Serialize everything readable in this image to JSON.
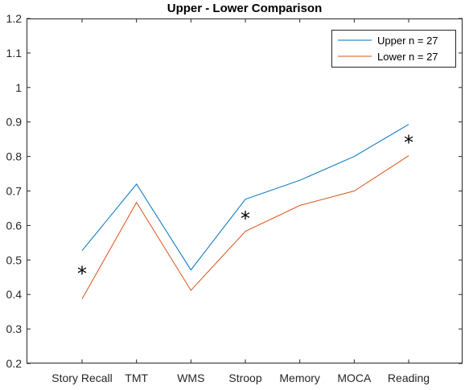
{
  "chart_data": {
    "type": "line",
    "title": "Upper - Lower Comparison",
    "categories": [
      "Story Recall",
      "TMT",
      "WMS",
      "Stroop",
      "Memory",
      "MOCA",
      "Reading"
    ],
    "ylim": [
      0.2,
      1.2
    ],
    "yticks": [
      "0.2",
      "0.3",
      "0.4",
      "0.5",
      "0.6",
      "0.7",
      "0.8",
      "0.9",
      "1",
      "1.1",
      "1.2"
    ],
    "yticks_values": [
      0.2,
      0.3,
      0.4,
      0.5,
      0.6,
      0.7,
      0.8,
      0.9,
      1.0,
      1.1,
      1.2
    ],
    "grid": false,
    "legend_position": "top-right",
    "series": [
      {
        "name": "Upper n = 27",
        "color": "#0072BD",
        "values": [
          0.527,
          0.72,
          0.471,
          0.676,
          0.731,
          0.8,
          0.893
        ]
      },
      {
        "name": "Lower n = 27",
        "color": "#D95319",
        "values": [
          0.387,
          0.667,
          0.412,
          0.583,
          0.658,
          0.7,
          0.802
        ]
      }
    ],
    "annotations": [
      {
        "text": "*",
        "category": "Story Recall",
        "y": 0.46
      },
      {
        "text": "*",
        "category": "Stroop",
        "y": 0.62
      },
      {
        "text": "*",
        "category": "Reading",
        "y": 0.84
      }
    ]
  }
}
